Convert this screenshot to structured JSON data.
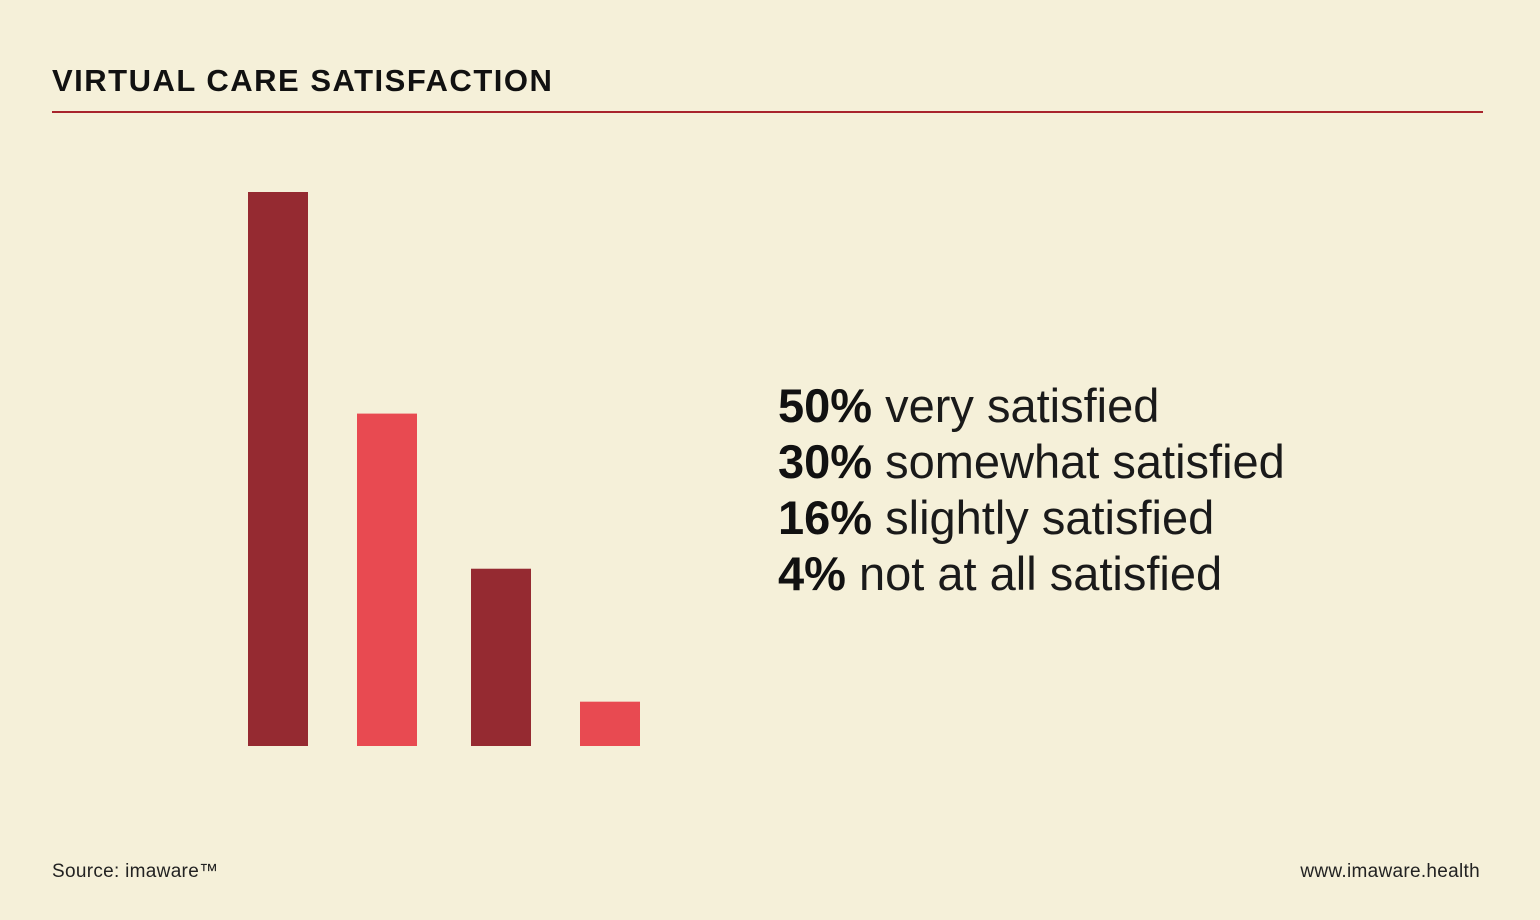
{
  "header": {
    "title": "VIRTUAL CARE SATISFACTION"
  },
  "colors": {
    "background": "#f5f0d9",
    "dark_red": "#952a31",
    "light_red": "#e84a51",
    "rule": "#a8242d"
  },
  "chart_data": {
    "type": "bar",
    "categories": [
      "very satisfied",
      "somewhat satisfied",
      "slightly satisfied",
      "not at all satisfied"
    ],
    "values": [
      50,
      30,
      16,
      4
    ],
    "value_labels": [
      "50%",
      "30%",
      "16%",
      "4%"
    ],
    "bar_colors": [
      "#952a31",
      "#e84a51",
      "#952a31",
      "#e84a51"
    ],
    "ylim": [
      0,
      50
    ],
    "grid": false,
    "legend": "right",
    "title": "",
    "xlabel": "",
    "ylabel": ""
  },
  "footer": {
    "source": "Source: imaware™",
    "website": "www.imaware.health"
  }
}
